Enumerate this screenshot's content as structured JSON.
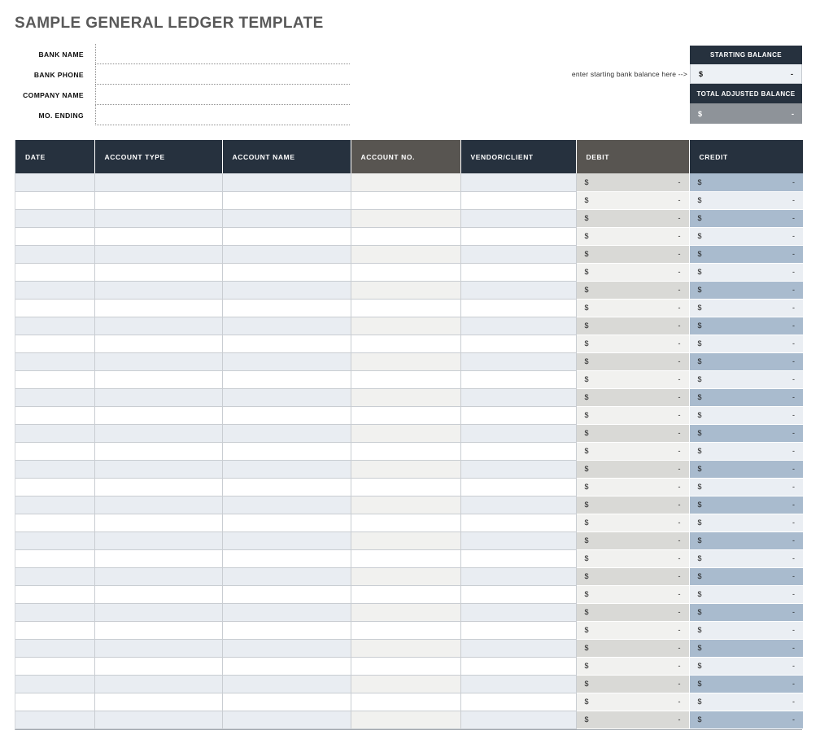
{
  "page_title": "SAMPLE GENERAL LEDGER TEMPLATE",
  "colors": {
    "header_navy": "#26313e",
    "header_gray": "#585551",
    "stripe_blue": "#e9edf2",
    "stripe_warm_gray": "#f1f1ef",
    "debit_striped": "#d9d9d6",
    "debit_plain": "#f1f1ef",
    "credit_striped": "#a9bbce",
    "credit_plain": "#eaeef3",
    "total_row_gray": "#8e9399",
    "title_gray": "#595959"
  },
  "form": {
    "fields": [
      {
        "label": "BANK NAME",
        "value": ""
      },
      {
        "label": "BANK PHONE",
        "value": ""
      },
      {
        "label": "COMPANY NAME",
        "value": ""
      },
      {
        "label": "MO. ENDING",
        "value": ""
      }
    ]
  },
  "balance_panel": {
    "note": "enter starting bank balance here -->",
    "starting_balance": {
      "label": "STARTING BALANCE",
      "currency": "$",
      "amount": "-"
    },
    "total_adjusted_balance": {
      "label": "TOTAL ADJUSTED BALANCE",
      "currency": "$",
      "amount": "-"
    }
  },
  "ledger_table": {
    "columns": [
      {
        "key": "date",
        "label": "DATE",
        "type": "text",
        "header_style": "navy"
      },
      {
        "key": "account_type",
        "label": "ACCOUNT TYPE",
        "type": "text",
        "header_style": "navy"
      },
      {
        "key": "account_name",
        "label": "ACCOUNT NAME",
        "type": "text",
        "header_style": "navy"
      },
      {
        "key": "account_no",
        "label": "ACCOUNT NO.",
        "type": "text",
        "header_style": "gray"
      },
      {
        "key": "vendor_client",
        "label": "VENDOR/CLIENT",
        "type": "text",
        "header_style": "navy"
      },
      {
        "key": "debit",
        "label": "DEBIT",
        "type": "money",
        "header_style": "gray"
      },
      {
        "key": "credit",
        "label": "CREDIT",
        "type": "money",
        "header_style": "navy"
      }
    ],
    "rows": [
      {
        "date": "",
        "account_type": "",
        "account_name": "",
        "account_no": "",
        "vendor_client": "",
        "debit": [
          "$",
          "-"
        ],
        "credit": [
          "$",
          "-"
        ]
      },
      {
        "date": "",
        "account_type": "",
        "account_name": "",
        "account_no": "",
        "vendor_client": "",
        "debit": [
          "$",
          "-"
        ],
        "credit": [
          "$",
          "-"
        ]
      },
      {
        "date": "",
        "account_type": "",
        "account_name": "",
        "account_no": "",
        "vendor_client": "",
        "debit": [
          "$",
          "-"
        ],
        "credit": [
          "$",
          "-"
        ]
      },
      {
        "date": "",
        "account_type": "",
        "account_name": "",
        "account_no": "",
        "vendor_client": "",
        "debit": [
          "$",
          "-"
        ],
        "credit": [
          "$",
          "-"
        ]
      },
      {
        "date": "",
        "account_type": "",
        "account_name": "",
        "account_no": "",
        "vendor_client": "",
        "debit": [
          "$",
          "-"
        ],
        "credit": [
          "$",
          "-"
        ]
      },
      {
        "date": "",
        "account_type": "",
        "account_name": "",
        "account_no": "",
        "vendor_client": "",
        "debit": [
          "$",
          "-"
        ],
        "credit": [
          "$",
          "-"
        ]
      },
      {
        "date": "",
        "account_type": "",
        "account_name": "",
        "account_no": "",
        "vendor_client": "",
        "debit": [
          "$",
          "-"
        ],
        "credit": [
          "$",
          "-"
        ]
      },
      {
        "date": "",
        "account_type": "",
        "account_name": "",
        "account_no": "",
        "vendor_client": "",
        "debit": [
          "$",
          "-"
        ],
        "credit": [
          "$",
          "-"
        ]
      },
      {
        "date": "",
        "account_type": "",
        "account_name": "",
        "account_no": "",
        "vendor_client": "",
        "debit": [
          "$",
          "-"
        ],
        "credit": [
          "$",
          "-"
        ]
      },
      {
        "date": "",
        "account_type": "",
        "account_name": "",
        "account_no": "",
        "vendor_client": "",
        "debit": [
          "$",
          "-"
        ],
        "credit": [
          "$",
          "-"
        ]
      },
      {
        "date": "",
        "account_type": "",
        "account_name": "",
        "account_no": "",
        "vendor_client": "",
        "debit": [
          "$",
          "-"
        ],
        "credit": [
          "$",
          "-"
        ]
      },
      {
        "date": "",
        "account_type": "",
        "account_name": "",
        "account_no": "",
        "vendor_client": "",
        "debit": [
          "$",
          "-"
        ],
        "credit": [
          "$",
          "-"
        ]
      },
      {
        "date": "",
        "account_type": "",
        "account_name": "",
        "account_no": "",
        "vendor_client": "",
        "debit": [
          "$",
          "-"
        ],
        "credit": [
          "$",
          "-"
        ]
      },
      {
        "date": "",
        "account_type": "",
        "account_name": "",
        "account_no": "",
        "vendor_client": "",
        "debit": [
          "$",
          "-"
        ],
        "credit": [
          "$",
          "-"
        ]
      },
      {
        "date": "",
        "account_type": "",
        "account_name": "",
        "account_no": "",
        "vendor_client": "",
        "debit": [
          "$",
          "-"
        ],
        "credit": [
          "$",
          "-"
        ]
      },
      {
        "date": "",
        "account_type": "",
        "account_name": "",
        "account_no": "",
        "vendor_client": "",
        "debit": [
          "$",
          "-"
        ],
        "credit": [
          "$",
          "-"
        ]
      },
      {
        "date": "",
        "account_type": "",
        "account_name": "",
        "account_no": "",
        "vendor_client": "",
        "debit": [
          "$",
          "-"
        ],
        "credit": [
          "$",
          "-"
        ]
      },
      {
        "date": "",
        "account_type": "",
        "account_name": "",
        "account_no": "",
        "vendor_client": "",
        "debit": [
          "$",
          "-"
        ],
        "credit": [
          "$",
          "-"
        ]
      },
      {
        "date": "",
        "account_type": "",
        "account_name": "",
        "account_no": "",
        "vendor_client": "",
        "debit": [
          "$",
          "-"
        ],
        "credit": [
          "$",
          "-"
        ]
      },
      {
        "date": "",
        "account_type": "",
        "account_name": "",
        "account_no": "",
        "vendor_client": "",
        "debit": [
          "$",
          "-"
        ],
        "credit": [
          "$",
          "-"
        ]
      },
      {
        "date": "",
        "account_type": "",
        "account_name": "",
        "account_no": "",
        "vendor_client": "",
        "debit": [
          "$",
          "-"
        ],
        "credit": [
          "$",
          "-"
        ]
      },
      {
        "date": "",
        "account_type": "",
        "account_name": "",
        "account_no": "",
        "vendor_client": "",
        "debit": [
          "$",
          "-"
        ],
        "credit": [
          "$",
          "-"
        ]
      },
      {
        "date": "",
        "account_type": "",
        "account_name": "",
        "account_no": "",
        "vendor_client": "",
        "debit": [
          "$",
          "-"
        ],
        "credit": [
          "$",
          "-"
        ]
      },
      {
        "date": "",
        "account_type": "",
        "account_name": "",
        "account_no": "",
        "vendor_client": "",
        "debit": [
          "$",
          "-"
        ],
        "credit": [
          "$",
          "-"
        ]
      },
      {
        "date": "",
        "account_type": "",
        "account_name": "",
        "account_no": "",
        "vendor_client": "",
        "debit": [
          "$",
          "-"
        ],
        "credit": [
          "$",
          "-"
        ]
      },
      {
        "date": "",
        "account_type": "",
        "account_name": "",
        "account_no": "",
        "vendor_client": "",
        "debit": [
          "$",
          "-"
        ],
        "credit": [
          "$",
          "-"
        ]
      },
      {
        "date": "",
        "account_type": "",
        "account_name": "",
        "account_no": "",
        "vendor_client": "",
        "debit": [
          "$",
          "-"
        ],
        "credit": [
          "$",
          "-"
        ]
      },
      {
        "date": "",
        "account_type": "",
        "account_name": "",
        "account_no": "",
        "vendor_client": "",
        "debit": [
          "$",
          "-"
        ],
        "credit": [
          "$",
          "-"
        ]
      },
      {
        "date": "",
        "account_type": "",
        "account_name": "",
        "account_no": "",
        "vendor_client": "",
        "debit": [
          "$",
          "-"
        ],
        "credit": [
          "$",
          "-"
        ]
      },
      {
        "date": "",
        "account_type": "",
        "account_name": "",
        "account_no": "",
        "vendor_client": "",
        "debit": [
          "$",
          "-"
        ],
        "credit": [
          "$",
          "-"
        ]
      },
      {
        "date": "",
        "account_type": "",
        "account_name": "",
        "account_no": "",
        "vendor_client": "",
        "debit": [
          "$",
          "-"
        ],
        "credit": [
          "$",
          "-"
        ]
      }
    ]
  }
}
